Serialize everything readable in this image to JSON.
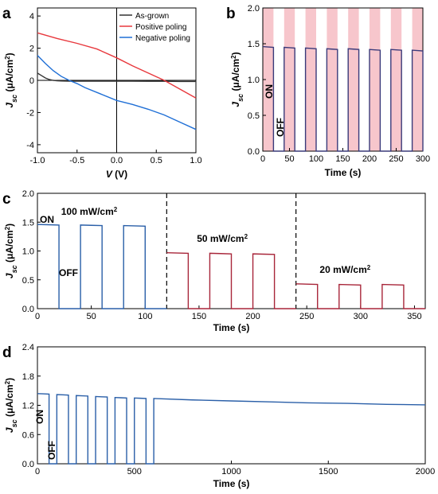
{
  "chart_data": [
    {
      "panel": "a",
      "type": "line",
      "xlabel": "V (V)",
      "ylabel": "Jsc (μA/cm²)",
      "xlim": [
        -1.0,
        1.0
      ],
      "ylim": [
        -4.5,
        4.5
      ],
      "xticks": [
        "-1.0",
        "-0.5",
        "0.0",
        "0.5",
        "1.0"
      ],
      "yticks": [
        "-4",
        "-2",
        "0",
        "2",
        "4"
      ],
      "legend_position": "top-right",
      "series": [
        {
          "name": "As-grown",
          "color": "#333333",
          "x": [
            -1.0,
            -0.95,
            -0.9,
            -0.85,
            -0.8,
            -0.75,
            -0.7,
            -0.6,
            -0.4,
            -0.2,
            0.0,
            0.2,
            0.4,
            0.6,
            0.8,
            1.0
          ],
          "y": [
            0.45,
            0.3,
            0.15,
            0.05,
            0.0,
            -0.03,
            -0.04,
            -0.05,
            -0.05,
            -0.05,
            -0.05,
            -0.05,
            -0.06,
            -0.06,
            -0.07,
            -0.07
          ]
        },
        {
          "name": "Positive poling",
          "color": "#e8383d",
          "x": [
            -1.0,
            -0.75,
            -0.5,
            -0.25,
            0.0,
            0.2,
            0.4,
            0.6,
            0.8,
            1.0
          ],
          "y": [
            2.95,
            2.6,
            2.3,
            1.95,
            1.4,
            0.9,
            0.45,
            0.0,
            -0.55,
            -1.1
          ]
        },
        {
          "name": "Negative poling",
          "color": "#1f6fd6",
          "x": [
            -1.0,
            -0.9,
            -0.8,
            -0.7,
            -0.6,
            -0.5,
            -0.4,
            -0.2,
            0.0,
            0.2,
            0.4,
            0.6,
            0.8,
            1.0
          ],
          "y": [
            1.55,
            1.05,
            0.6,
            0.25,
            0.0,
            -0.2,
            -0.45,
            -0.85,
            -1.25,
            -1.5,
            -1.8,
            -2.15,
            -2.6,
            -3.05
          ]
        }
      ]
    },
    {
      "panel": "b",
      "type": "line",
      "xlabel": "Time (s)",
      "ylabel": "Jsc (μA/cm²)",
      "xlim": [
        0,
        300
      ],
      "ylim": [
        0,
        2.0
      ],
      "xticks": [
        "0",
        "50",
        "100",
        "150",
        "200",
        "250",
        "300"
      ],
      "yticks": [
        "0.0",
        "0.5",
        "1.0",
        "1.5",
        "2.0"
      ],
      "annotations": [
        "ON",
        "OFF"
      ],
      "on_color": "#f7c6cc",
      "series": [
        {
          "color": "#3a3a7a",
          "on_intervals": [
            [
              0,
              20
            ],
            [
              40,
              60
            ],
            [
              80,
              100
            ],
            [
              120,
              140
            ],
            [
              160,
              180
            ],
            [
              200,
              220
            ],
            [
              240,
              260
            ],
            [
              280,
              300
            ]
          ],
          "on_levels": [
            1.46,
            1.45,
            1.44,
            1.43,
            1.43,
            1.42,
            1.42,
            1.41
          ]
        }
      ]
    },
    {
      "panel": "c",
      "type": "line",
      "xlabel": "Time (s)",
      "ylabel": "Jsc (μA/cm²)",
      "xlim": [
        0,
        360
      ],
      "ylim": [
        0,
        2.0
      ],
      "xticks": [
        "0",
        "50",
        "100",
        "150",
        "200",
        "250",
        "300",
        "350"
      ],
      "yticks": [
        "0.0",
        "0.5",
        "1.0",
        "1.5",
        "2.0"
      ],
      "dashed_x": [
        120,
        240
      ],
      "annotations": [
        "ON",
        "OFF",
        "100 mW/cm²",
        "50 mW/cm²",
        "20 mW/cm²"
      ],
      "series": [
        {
          "name": "100 mW/cm²",
          "color": "#2a5fa8",
          "on_intervals": [
            [
              0,
              20
            ],
            [
              40,
              60
            ],
            [
              80,
              100
            ]
          ],
          "on_levels": [
            1.46,
            1.45,
            1.44
          ]
        },
        {
          "name": "50 mW/cm²",
          "color": "#a8263a",
          "on_intervals": [
            [
              120,
              140
            ],
            [
              160,
              180
            ],
            [
              200,
              220
            ]
          ],
          "on_levels": [
            0.97,
            0.96,
            0.95
          ]
        },
        {
          "name": "20 mW/cm²",
          "color": "#a8263a",
          "on_intervals": [
            [
              240,
              260
            ],
            [
              280,
              300
            ],
            [
              320,
              340
            ]
          ],
          "on_levels": [
            0.43,
            0.42,
            0.42
          ]
        }
      ]
    },
    {
      "panel": "d",
      "type": "line",
      "xlabel": "Time (s)",
      "ylabel": "Jsc (μA/cm²)",
      "xlim": [
        0,
        2000
      ],
      "ylim": [
        0,
        2.4
      ],
      "xticks": [
        "0",
        "500",
        "1000",
        "1500",
        "2000"
      ],
      "yticks": [
        "0.0",
        "0.6",
        "1.2",
        "1.8",
        "2.4"
      ],
      "annotations": [
        "ON",
        "OFF"
      ],
      "series": [
        {
          "color": "#2a5fa8",
          "on_intervals": [
            [
              0,
              60
            ],
            [
              100,
              160
            ],
            [
              200,
              260
            ],
            [
              300,
              360
            ],
            [
              400,
              460
            ],
            [
              500,
              560
            ]
          ],
          "on_levels": [
            1.44,
            1.42,
            1.4,
            1.38,
            1.36,
            1.35
          ],
          "continuous_from": 600,
          "continuous_x": [
            600,
            800,
            1000,
            1200,
            1400,
            1600,
            1800,
            2000
          ],
          "continuous_y": [
            1.34,
            1.31,
            1.29,
            1.27,
            1.25,
            1.24,
            1.22,
            1.21
          ]
        }
      ]
    }
  ]
}
